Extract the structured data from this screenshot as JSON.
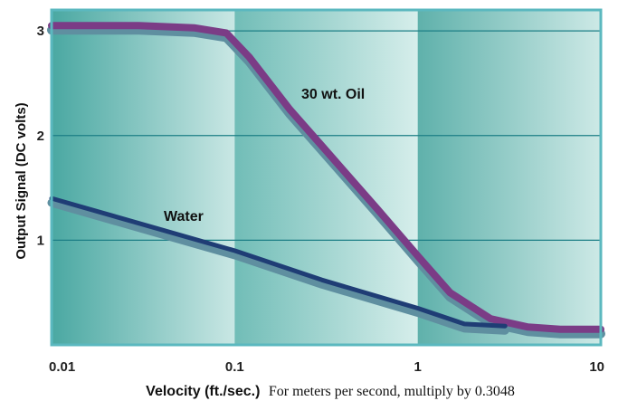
{
  "chart_data": {
    "type": "line",
    "x_scale": "log",
    "xlim": [
      0.01,
      10
    ],
    "ylim": [
      0,
      3.2
    ],
    "x_ticks": [
      "0.01",
      "0.1",
      "1",
      "10"
    ],
    "y_ticks": [
      "1",
      "2",
      "3"
    ],
    "xlabel_bold": "Velocity (ft./sec.)",
    "xlabel_note": "For meters per second, multiply by 0.3048",
    "ylabel": "Output Signal (DC volts)",
    "grid": "horizontal",
    "series": [
      {
        "name": "30 wt. Oil",
        "color": "#7b3c86",
        "shadow_color": "#5f8fa0",
        "x": [
          0.01,
          0.03,
          0.06,
          0.09,
          0.12,
          0.2,
          0.3,
          0.6,
          1.0,
          1.5,
          2.5,
          4.0,
          6.0,
          10.0
        ],
        "y": [
          3.05,
          3.05,
          3.03,
          2.98,
          2.75,
          2.25,
          1.9,
          1.3,
          0.85,
          0.5,
          0.25,
          0.17,
          0.15,
          0.15
        ]
      },
      {
        "name": "Water",
        "color": "#1f3d75",
        "shadow_color": "#5f8fa0",
        "x": [
          0.01,
          0.1,
          0.3,
          1.0,
          1.8,
          3.0
        ],
        "y": [
          1.4,
          0.9,
          0.62,
          0.35,
          0.2,
          0.18
        ]
      }
    ],
    "annotations": [
      "30 wt. Oil",
      "Water"
    ]
  }
}
